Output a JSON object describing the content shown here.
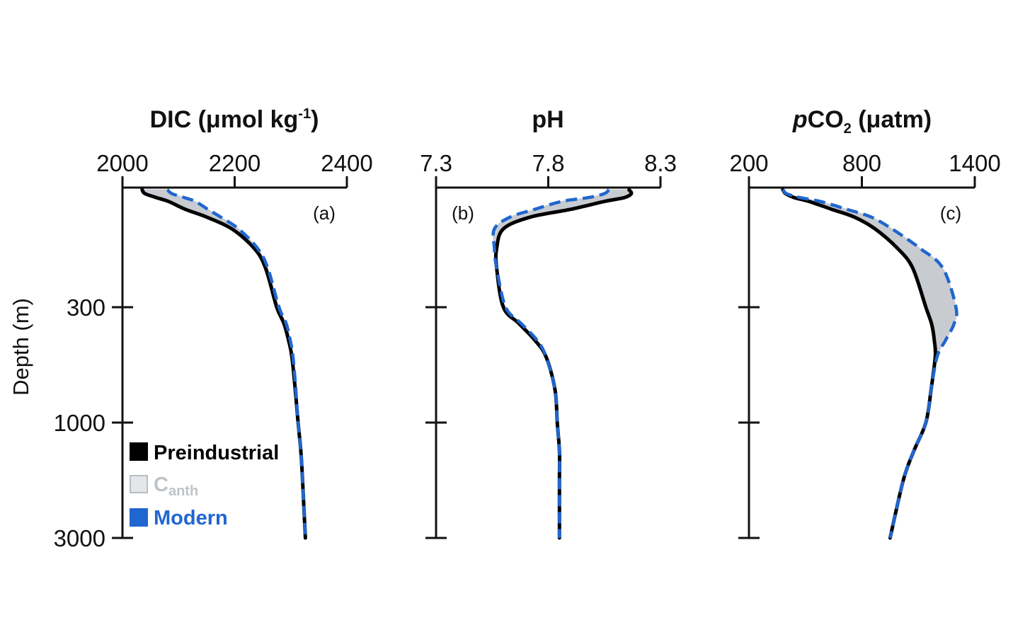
{
  "figure": {
    "y_axis_label": "Depth (m)",
    "legend": [
      {
        "label": "Preindustrial",
        "color": "#000000",
        "kind": "solid"
      },
      {
        "label": "C",
        "sub": "anth",
        "color": "#c8ccd1",
        "kind": "fill"
      },
      {
        "label": "Modern",
        "color": "#2066d0",
        "kind": "dashed"
      }
    ]
  },
  "chart_data": [
    {
      "type": "line",
      "panel": "a",
      "panel_label": "(a)",
      "title": "DIC (μmol kg",
      "title_sup": "-1",
      "title_end": ")",
      "x_ticks": [
        "2000",
        "2200",
        "2400"
      ],
      "xlim": [
        2000,
        2400
      ],
      "y_ticks": [
        "300",
        "1000",
        "3000"
      ],
      "y_values_depth": [
        0,
        10,
        20,
        30,
        50,
        70,
        100,
        150,
        200,
        300,
        400,
        500,
        600,
        800,
        1000,
        1500,
        2000,
        3000
      ],
      "series": [
        {
          "name": "Preindustrial",
          "values": [
            2035,
            2040,
            2060,
            2082,
            2112,
            2150,
            2195,
            2235,
            2255,
            2275,
            2288,
            2296,
            2302,
            2308,
            2313,
            2318,
            2321,
            2326
          ]
        },
        {
          "name": "Modern",
          "values": [
            2080,
            2088,
            2110,
            2130,
            2152,
            2175,
            2207,
            2241,
            2259,
            2279,
            2292,
            2299,
            2304,
            2309,
            2313,
            2318,
            2321,
            2326
          ]
        }
      ]
    },
    {
      "type": "line",
      "panel": "b",
      "panel_label": "(b)",
      "title": "pH",
      "x_ticks": [
        "7.3",
        "7.8",
        "8.3"
      ],
      "xlim": [
        7.3,
        8.3
      ],
      "y_ticks": [
        "300",
        "1000",
        "3000"
      ],
      "y_values_depth": [
        0,
        10,
        20,
        30,
        50,
        70,
        100,
        150,
        200,
        300,
        400,
        500,
        600,
        800,
        1000,
        1500,
        2000,
        3000
      ],
      "series": [
        {
          "name": "Preindustrial",
          "values": [
            8.16,
            8.17,
            8.14,
            8.05,
            7.9,
            7.72,
            7.6,
            7.57,
            7.57,
            7.6,
            7.67,
            7.74,
            7.79,
            7.83,
            7.84,
            7.85,
            7.85,
            7.85
          ]
        },
        {
          "name": "Modern",
          "values": [
            8.07,
            8.05,
            7.98,
            7.86,
            7.74,
            7.63,
            7.56,
            7.56,
            7.57,
            7.61,
            7.68,
            7.75,
            7.79,
            7.83,
            7.84,
            7.85,
            7.85,
            7.85
          ]
        }
      ]
    },
    {
      "type": "line",
      "panel": "c",
      "panel_label": "(c)",
      "title": "CO",
      "title_italic": "p",
      "title_sub": "2",
      "title_end": " (μatm)",
      "x_ticks": [
        "200",
        "800",
        "1400"
      ],
      "xlim": [
        200,
        1400
      ],
      "y_ticks": [
        "300",
        "1000",
        "3000"
      ],
      "y_values_depth": [
        0,
        10,
        20,
        30,
        50,
        70,
        100,
        150,
        200,
        300,
        400,
        500,
        600,
        800,
        1000,
        1500,
        2000,
        3000
      ],
      "series": [
        {
          "name": "Preindustrial",
          "values": [
            380,
            395,
            440,
            520,
            640,
            760,
            870,
            990,
            1070,
            1140,
            1170,
            1185,
            1190,
            1168,
            1140,
            1075,
            1020,
            950
          ]
        },
        {
          "name": "Modern",
          "values": [
            380,
            400,
            470,
            580,
            720,
            850,
            960,
            1110,
            1230,
            1300,
            1290,
            1245,
            1200,
            1168,
            1140,
            1075,
            1020,
            950
          ]
        }
      ]
    }
  ]
}
